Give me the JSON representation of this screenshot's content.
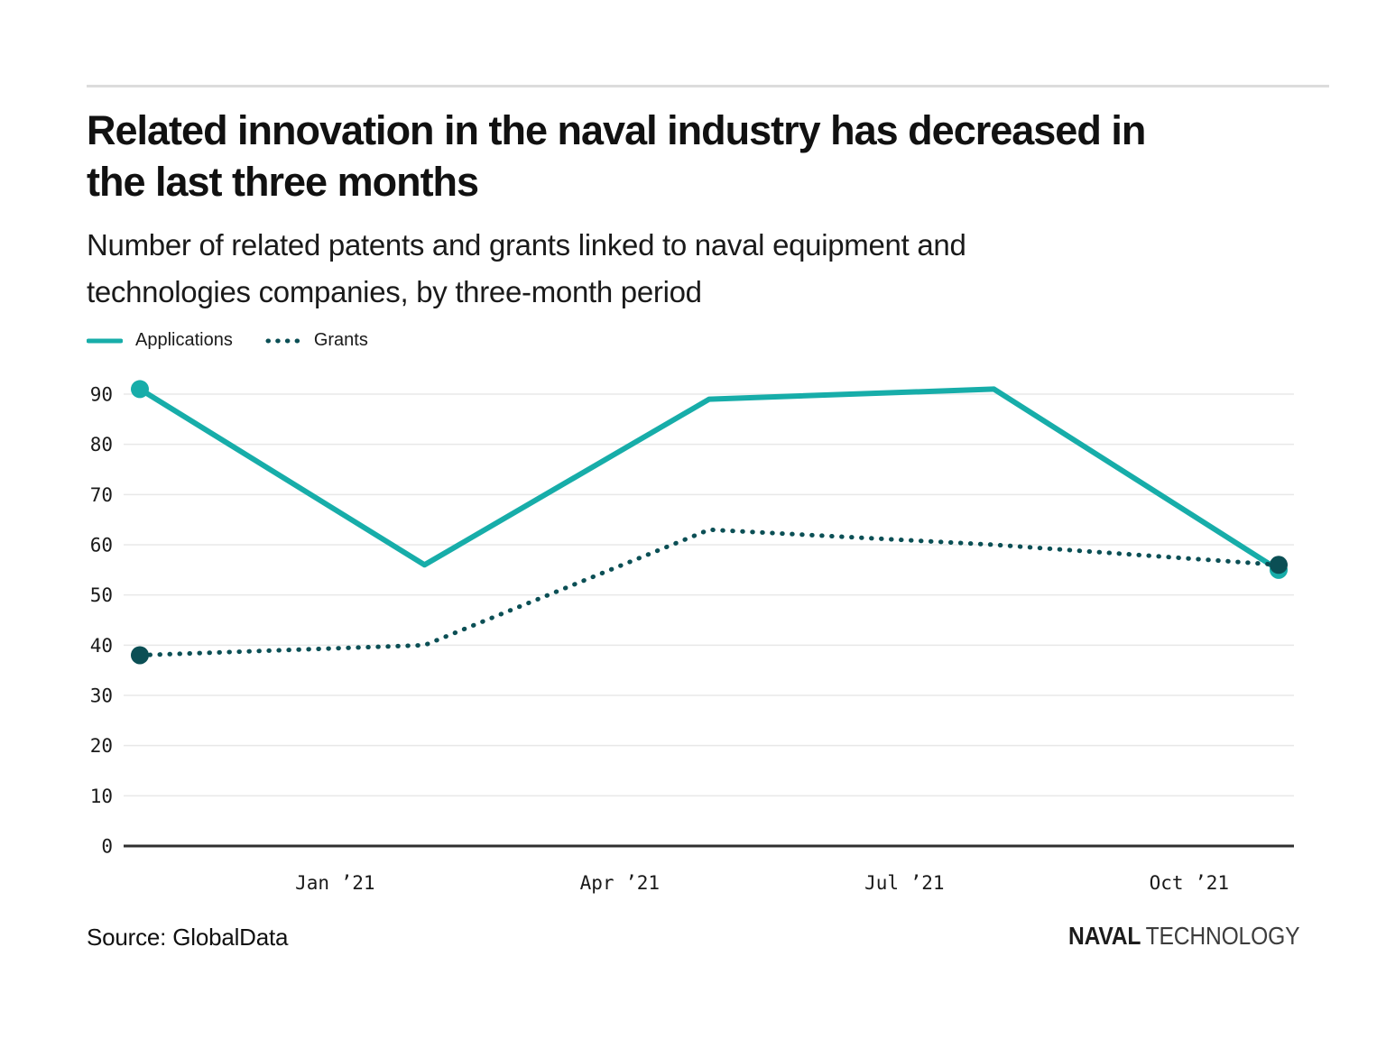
{
  "header": {
    "title_line1": "Related innovation in the naval industry has decreased in",
    "title_line2": "the last three months",
    "subtitle_line1": "Number of related patents and grants linked to naval equipment and",
    "subtitle_line2": "technologies companies, by three-month period"
  },
  "footer": {
    "source": "Source: GlobalData",
    "brand_bold": "NAVAL",
    "brand_light": "TECHNOLOGY"
  },
  "chart_data": {
    "type": "line",
    "title": "Related innovation in the naval industry has decreased in the last three months",
    "subtitle": "Number of related patents and grants linked to naval equipment and technologies companies, by three-month period",
    "x": [
      "Nov ’20",
      "Feb ’21",
      "May ’21",
      "Aug ’21",
      "Nov ’21"
    ],
    "x_tick_labels": [
      "Jan ’21",
      "Apr ’21",
      "Jul ’21",
      "Oct ’21"
    ],
    "y_ticks": [
      0,
      10,
      20,
      30,
      40,
      50,
      60,
      70,
      80,
      90
    ],
    "ylim": [
      0,
      95
    ],
    "grid": "horizontal",
    "legend_position": "top-left",
    "series": [
      {
        "name": "Applications",
        "style": "solid",
        "color": "#17ada9",
        "values": [
          91,
          56,
          89,
          91,
          55
        ],
        "markers": "first-and-last"
      },
      {
        "name": "Grants",
        "style": "dotted",
        "color": "#0b4f55",
        "values": [
          38,
          40,
          63,
          60,
          56
        ],
        "markers": "first-and-last"
      }
    ],
    "colors": {
      "axis": "#2f2f2f",
      "gridline": "#e8e8e8",
      "tick_text": "#1a1a1a"
    }
  }
}
